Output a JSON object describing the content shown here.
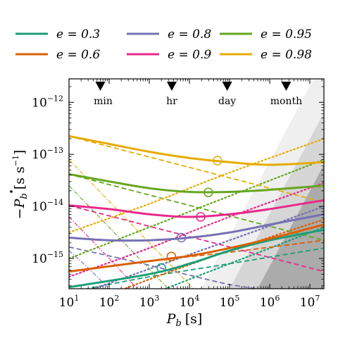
{
  "chart_data": {
    "type": "line",
    "xlabel_var": "P",
    "xlabel_sub": "b",
    "xlabel_unit": "[s]",
    "ylabel_var": "−P",
    "ylabel_sub": "b",
    "ylabel_unit": "[s s",
    "ylabel_unit_exp": "−1",
    "ylabel_unit_close": "]",
    "xscale": "log",
    "yscale": "log",
    "xlim_log": [
      1,
      7.35
    ],
    "ylim_log": [
      -15.58,
      -11.55
    ],
    "xticks": [
      {
        "base": "10",
        "exp": "1",
        "log": 1
      },
      {
        "base": "10",
        "exp": "2",
        "log": 2
      },
      {
        "base": "10",
        "exp": "3",
        "log": 3
      },
      {
        "base": "10",
        "exp": "4",
        "log": 4
      },
      {
        "base": "10",
        "exp": "5",
        "log": 5
      },
      {
        "base": "10",
        "exp": "6",
        "log": 6
      },
      {
        "base": "10",
        "exp": "7",
        "log": 7
      }
    ],
    "yticks": [
      {
        "base": "10",
        "exp": "−15",
        "log": -15
      },
      {
        "base": "10",
        "exp": "−14",
        "log": -14
      },
      {
        "base": "10",
        "exp": "−13",
        "log": -13
      },
      {
        "base": "10",
        "exp": "−12",
        "log": -12
      }
    ],
    "time_markers": [
      {
        "label": "min",
        "log_seconds": 1.78
      },
      {
        "label": "hr",
        "log_seconds": 3.56
      },
      {
        "label": "day",
        "log_seconds": 4.94
      },
      {
        "label": "month",
        "log_seconds": 6.41
      }
    ],
    "legend_position": "top",
    "series": [
      {
        "name": "e = 0.3",
        "color": "#1b9e77",
        "total": [
          [
            1,
            -15.55
          ],
          [
            3,
            -15.3
          ],
          [
            4,
            -15.1
          ],
          [
            5,
            -14.85
          ],
          [
            6,
            -14.65
          ],
          [
            7.35,
            -14.45
          ]
        ],
        "dashed": [
          [
            1,
            -15.65
          ],
          [
            3,
            -15.35
          ],
          [
            5,
            -15.1
          ],
          [
            7.35,
            -14.8
          ]
        ],
        "dotted": [
          [
            1,
            -16.3
          ],
          [
            3,
            -15.7
          ],
          [
            5,
            -15.1
          ],
          [
            7.35,
            -14.4
          ]
        ],
        "dashdot": null,
        "marker": [
          3.3,
          -15.18
        ]
      },
      {
        "name": "e = 0.6",
        "color": "#d95f02",
        "total": [
          [
            1,
            -15.25
          ],
          [
            2,
            -15.15
          ],
          [
            3,
            -15.05
          ],
          [
            4,
            -14.95
          ],
          [
            5,
            -14.8
          ],
          [
            6,
            -14.62
          ],
          [
            7.35,
            -14.35
          ]
        ],
        "dashed": [
          [
            1,
            -15.25
          ],
          [
            3,
            -15.05
          ],
          [
            5,
            -14.88
          ],
          [
            7.35,
            -14.65
          ]
        ],
        "dotted": [
          [
            1,
            -16.0
          ],
          [
            3,
            -15.4
          ],
          [
            5,
            -14.85
          ],
          [
            7.35,
            -14.25
          ]
        ],
        "dashdot": null,
        "marker": [
          3.55,
          -14.96
        ]
      },
      {
        "name": "e = 0.8",
        "color": "#7570b3",
        "total": [
          [
            1,
            -14.6
          ],
          [
            2,
            -14.65
          ],
          [
            3,
            -14.65
          ],
          [
            4,
            -14.6
          ],
          [
            5,
            -14.5
          ],
          [
            6,
            -14.35
          ],
          [
            7.35,
            -14.15
          ]
        ],
        "dashed": [
          [
            1,
            -14.78
          ],
          [
            2,
            -14.95
          ],
          [
            3,
            -15.13
          ],
          [
            4,
            -15.32
          ],
          [
            5,
            -15.5
          ],
          [
            5.7,
            -15.58
          ]
        ],
        "dotted": [
          [
            1,
            -15.75
          ],
          [
            3,
            -15.2
          ],
          [
            5,
            -14.65
          ],
          [
            7.35,
            -14.0
          ]
        ],
        "dashdot": [
          [
            1,
            -14.85
          ],
          [
            1.5,
            -15.2
          ],
          [
            2,
            -15.58
          ]
        ],
        "marker": [
          3.8,
          -14.6
        ]
      },
      {
        "name": "e = 0.9",
        "color": "#e7298a",
        "total": [
          [
            1,
            -13.98
          ],
          [
            2,
            -14.05
          ],
          [
            3,
            -14.15
          ],
          [
            4,
            -14.2
          ],
          [
            5,
            -14.15
          ],
          [
            6,
            -14.05
          ],
          [
            7.35,
            -13.88
          ]
        ],
        "dashed": [
          [
            1,
            -13.98
          ],
          [
            2,
            -14.18
          ],
          [
            3,
            -14.38
          ],
          [
            4,
            -14.58
          ],
          [
            5,
            -14.78
          ],
          [
            6,
            -14.98
          ],
          [
            7.35,
            -15.25
          ]
        ],
        "dotted": [
          [
            1,
            -15.35
          ],
          [
            3,
            -14.8
          ],
          [
            5,
            -14.2
          ],
          [
            7.35,
            -13.55
          ]
        ],
        "dashdot": [
          [
            1,
            -14.2
          ],
          [
            2,
            -15.0
          ],
          [
            2.7,
            -15.58
          ]
        ],
        "marker": [
          4.28,
          -14.2
        ]
      },
      {
        "name": "e = 0.95",
        "color": "#66a61e",
        "total": [
          [
            1,
            -13.38
          ],
          [
            2,
            -13.52
          ],
          [
            3,
            -13.65
          ],
          [
            4,
            -13.72
          ],
          [
            5,
            -13.72
          ],
          [
            6,
            -13.68
          ],
          [
            7.35,
            -13.6
          ]
        ],
        "dashed": [
          [
            1,
            -13.38
          ],
          [
            2,
            -13.58
          ],
          [
            3,
            -13.78
          ],
          [
            4,
            -13.98
          ],
          [
            5,
            -14.18
          ],
          [
            6,
            -14.38
          ],
          [
            7.35,
            -14.65
          ]
        ],
        "dotted": [
          [
            1,
            -15.0
          ],
          [
            3,
            -14.4
          ],
          [
            5,
            -13.8
          ],
          [
            7.35,
            -13.1
          ]
        ],
        "dashdot": [
          [
            1,
            -13.6
          ],
          [
            2,
            -14.4
          ],
          [
            3,
            -15.2
          ],
          [
            3.47,
            -15.58
          ]
        ],
        "marker": [
          4.47,
          -13.73
        ]
      },
      {
        "name": "e = 0.98",
        "color": "#e6ab02",
        "total": [
          [
            1,
            -12.65
          ],
          [
            2,
            -12.8
          ],
          [
            3,
            -12.95
          ],
          [
            4,
            -13.07
          ],
          [
            5,
            -13.15
          ],
          [
            6,
            -13.2
          ],
          [
            7.35,
            -13.15
          ]
        ],
        "dashed": [
          [
            1,
            -12.65
          ],
          [
            2,
            -12.85
          ],
          [
            3,
            -13.05
          ],
          [
            4,
            -13.25
          ],
          [
            5,
            -13.45
          ],
          [
            6,
            -13.65
          ],
          [
            7.35,
            -13.92
          ]
        ],
        "dotted": [
          [
            1,
            -14.5
          ],
          [
            3,
            -13.95
          ],
          [
            5,
            -13.35
          ],
          [
            7.35,
            -12.7
          ]
        ],
        "dashdot": [
          [
            1,
            -13.1
          ],
          [
            2,
            -13.9
          ],
          [
            3,
            -14.7
          ],
          [
            4.1,
            -15.58
          ]
        ],
        "marker": [
          4.7,
          -13.12
        ]
      }
    ],
    "shaded_regions": [
      {
        "color": "#efefef",
        "poly": [
          [
            4.3,
            -15.58
          ],
          [
            7.1,
            -11.55
          ],
          [
            7.35,
            -11.55
          ],
          [
            7.35,
            -15.58
          ]
        ]
      },
      {
        "color": "#d6d6d6",
        "poly": [
          [
            5.0,
            -15.58
          ],
          [
            7.35,
            -12.2
          ],
          [
            7.35,
            -15.58
          ]
        ]
      },
      {
        "color": "#ababab",
        "poly": [
          [
            5.7,
            -15.58
          ],
          [
            7.35,
            -13.2
          ],
          [
            7.35,
            -15.58
          ]
        ]
      }
    ]
  }
}
